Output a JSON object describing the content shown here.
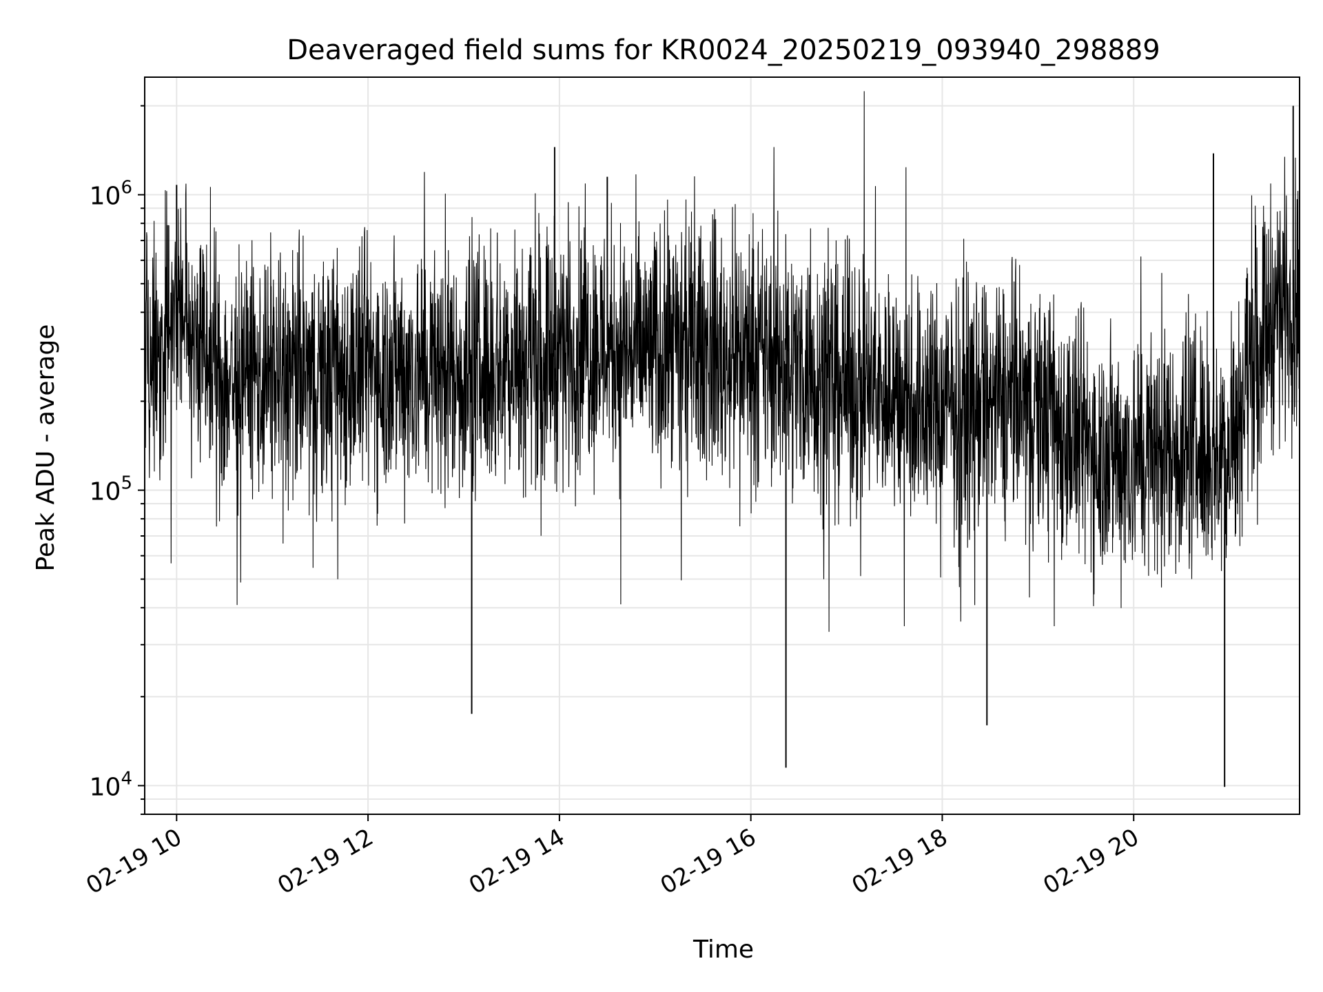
{
  "chart_data": {
    "type": "line",
    "title": "Deaveraged field sums for KR0024_20250219_093940_298889",
    "xlabel": "Time",
    "ylabel": "Peak ADU - average",
    "yscale": "log",
    "ylim": [
      8000,
      2500000
    ],
    "xlim": [
      "2025-02-19 09:40",
      "2025-02-19 21:44"
    ],
    "grid": true,
    "line_color": "#000000",
    "grid_color": "#e6e6e6",
    "x_ticks": [
      {
        "value": "2025-02-19 10:00",
        "label": "02-19 10"
      },
      {
        "value": "2025-02-19 12:00",
        "label": "02-19 12"
      },
      {
        "value": "2025-02-19 14:00",
        "label": "02-19 14"
      },
      {
        "value": "2025-02-19 16:00",
        "label": "02-19 16"
      },
      {
        "value": "2025-02-19 18:00",
        "label": "02-19 18"
      },
      {
        "value": "2025-02-19 20:00",
        "label": "02-19 20"
      }
    ],
    "y_ticks": [
      {
        "value": 10000,
        "base": "10",
        "exp": "4"
      },
      {
        "value": 100000,
        "base": "10",
        "exp": "5"
      },
      {
        "value": 1000000,
        "base": "10",
        "exp": "6"
      }
    ],
    "series": [
      {
        "x": [
          "2025-02-19 09:40",
          "2025-02-19 09:50",
          "2025-02-19 10:00",
          "2025-02-19 10:10",
          "2025-02-19 10:20",
          "2025-02-19 10:30",
          "2025-02-19 10:45",
          "2025-02-19 11:00",
          "2025-02-19 11:30",
          "2025-02-19 12:00",
          "2025-02-19 12:30",
          "2025-02-19 13:00",
          "2025-02-19 13:30",
          "2025-02-19 14:00",
          "2025-02-19 14:30",
          "2025-02-19 15:00",
          "2025-02-19 15:30",
          "2025-02-19 16:00",
          "2025-02-19 16:30",
          "2025-02-19 17:00",
          "2025-02-19 17:30",
          "2025-02-19 18:00",
          "2025-02-19 18:30",
          "2025-02-19 19:00",
          "2025-02-19 19:30",
          "2025-02-19 20:00",
          "2025-02-19 20:30",
          "2025-02-19 21:00",
          "2025-02-19 21:15",
          "2025-02-19 21:30",
          "2025-02-19 21:44"
        ],
        "y": [
          250000,
          280000,
          450000,
          350000,
          260000,
          230000,
          240000,
          250000,
          240000,
          260000,
          255000,
          250000,
          280000,
          300000,
          310000,
          290000,
          300000,
          290000,
          260000,
          230000,
          210000,
          190000,
          200000,
          190000,
          140000,
          130000,
          140000,
          140000,
          300000,
          420000,
          450000
        ]
      }
    ],
    "spikes": [
      {
        "x": "2025-02-19 10:00",
        "y": 1080000
      },
      {
        "x": "2025-02-19 13:57",
        "y": 1450000
      },
      {
        "x": "2025-02-19 14:30",
        "y": 1150000
      },
      {
        "x": "2025-02-19 13:05",
        "y": 17500
      },
      {
        "x": "2025-02-19 16:22",
        "y": 11500
      },
      {
        "x": "2025-02-19 18:28",
        "y": 16000
      },
      {
        "x": "2025-02-19 20:50",
        "y": 1380000
      },
      {
        "x": "2025-02-19 20:57",
        "y": 9900
      },
      {
        "x": "2025-02-19 21:40",
        "y": 2000000
      }
    ]
  }
}
